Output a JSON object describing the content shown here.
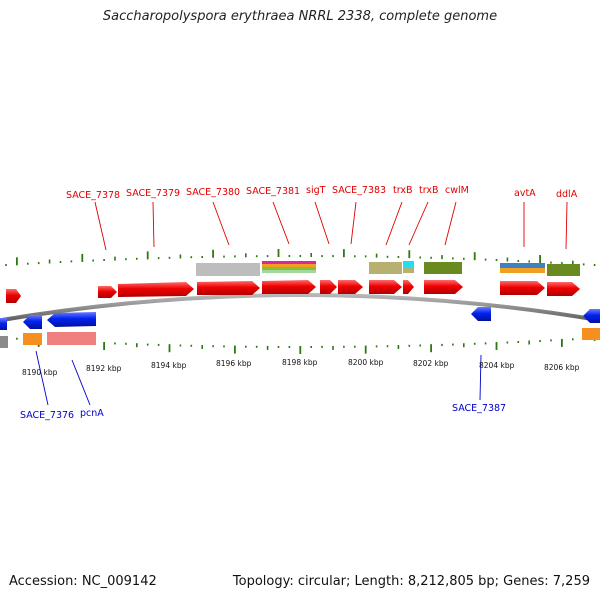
{
  "title": "Saccharopolyspora erythraea NRRL 2338, complete genome",
  "accession": "Accession: NC_009142",
  "topology": "Topology: circular; Length: 8,212,805 bp; Genes: 7,259",
  "ticks": [
    "8190 kbp",
    "8192 kbp",
    "8194 kbp",
    "8196 kbp",
    "8198 kbp",
    "8200 kbp",
    "8202 kbp",
    "8204 kbp",
    "8206 kbp"
  ],
  "forward_labels": [
    "SACE_7378",
    "SACE_7379",
    "SACE_7380",
    "SACE_7381",
    "sigT",
    "SACE_7383",
    "trxB",
    "trxB",
    "cwlM",
    "avtA",
    "ddlA"
  ],
  "reverse_labels": [
    "SACE_7376",
    "pcnA",
    "SACE_7387"
  ],
  "colors": {
    "forward": "#ee0000",
    "reverse": "#0022ee",
    "forward_label": "#e00000",
    "reverse_label": "#0000cc",
    "backbone": "#808080",
    "tick": "#2a7a10"
  }
}
